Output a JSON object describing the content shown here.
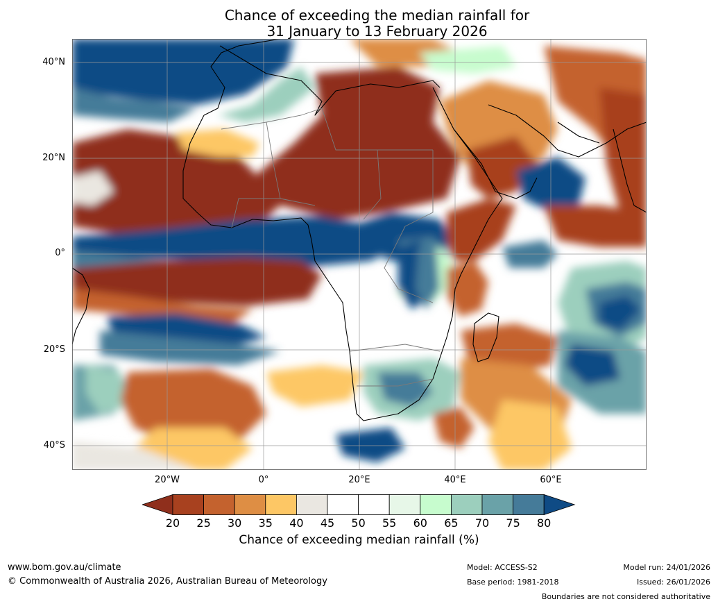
{
  "title": {
    "line1": "Chance of exceeding the median rainfall for",
    "line2": "31 January to 13 February 2026"
  },
  "axes": {
    "lat_labels": [
      "40°N",
      "20°N",
      "0°",
      "20°S",
      "40°S"
    ],
    "lon_labels": [
      "20°W",
      "0°",
      "20°E",
      "40°E",
      "60°E"
    ]
  },
  "colorbar": {
    "label": "Chance of exceeding median rainfall (%)",
    "ticks": [
      "20",
      "25",
      "30",
      "35",
      "40",
      "45",
      "50",
      "55",
      "60",
      "65",
      "70",
      "75",
      "80"
    ],
    "colors": [
      "#8f2f1c",
      "#a8411f",
      "#c4622e",
      "#de8e44",
      "#fdc765",
      "#eae7e1",
      "#ffffff",
      "#ffffff",
      "#e7f7e8",
      "#c7fcce",
      "#9ccfbd",
      "#6aa2a8",
      "#457b99",
      "#0f4b85"
    ]
  },
  "footer": {
    "site": "www.bom.gov.au/climate",
    "copyright": "© Commonwealth of Australia 2026, Australian Bureau of Meteorology",
    "model": "Model: ACCESS-S2",
    "base_period": "Base period: 1981-2018",
    "model_run": "Model run: 24/01/2026",
    "issued": "Issued: 26/01/2026",
    "boundaries_note": "Boundaries are not considered authoritative"
  }
}
